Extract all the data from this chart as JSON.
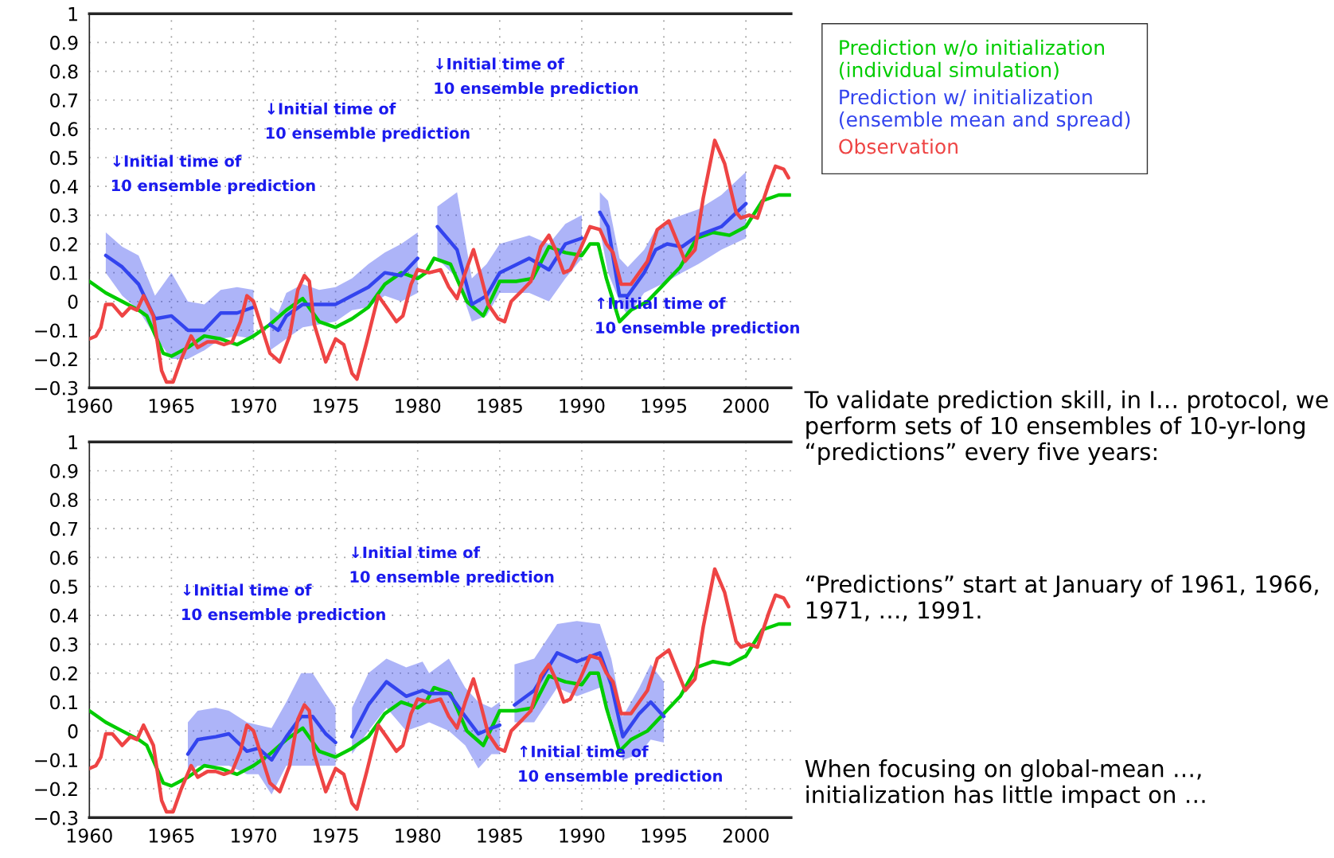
{
  "chart_data": [
    {
      "type": "line",
      "xlim": [
        1960,
        2002.75
      ],
      "ylim": [
        -0.3,
        1
      ],
      "xticks": [
        1960,
        1965,
        1970,
        1975,
        1980,
        1985,
        1990,
        1995,
        2000
      ],
      "yticks": [
        {
          "value": -0.3,
          "label": "−0.3"
        },
        {
          "value": -0.2,
          "label": "−0.2"
        },
        {
          "value": -0.1,
          "label": "−0.1"
        },
        0,
        0.1,
        0.2,
        0.3,
        0.4,
        0.5,
        0.6,
        0.7,
        0.8,
        0.9,
        1
      ],
      "grid": true,
      "legend": "right",
      "series": [
        {
          "name": "Prediction w/o initialization\n(individual simulation)",
          "color": "#00cc00",
          "x": [
            1960,
            1961,
            1962,
            1963,
            1963.5,
            1964.5,
            1965,
            1966,
            1967,
            1968,
            1969,
            1970,
            1971,
            1972,
            1973,
            1974,
            1975,
            1976,
            1977,
            1978,
            1979,
            1980,
            1980.5,
            1981,
            1982,
            1983,
            1983.6,
            1984,
            1985,
            1986,
            1987,
            1988,
            1989,
            1990,
            1990.5,
            1991,
            1991.5,
            1992.3,
            1993,
            1994,
            1995,
            1996,
            1997,
            1998,
            1999,
            2000,
            2001,
            2002,
            2002.7
          ],
          "values": [
            0.07,
            0.03,
            0.0,
            -0.03,
            -0.05,
            -0.18,
            -0.19,
            -0.16,
            -0.12,
            -0.13,
            -0.15,
            -0.12,
            -0.08,
            -0.03,
            0.01,
            -0.07,
            -0.09,
            -0.06,
            -0.02,
            0.06,
            0.1,
            0.08,
            0.1,
            0.15,
            0.13,
            0.0,
            -0.03,
            -0.05,
            0.07,
            0.07,
            0.08,
            0.19,
            0.17,
            0.16,
            0.2,
            0.2,
            0.08,
            -0.07,
            -0.03,
            0.0,
            0.06,
            0.12,
            0.22,
            0.24,
            0.23,
            0.26,
            0.35,
            0.37,
            0.37
          ]
        },
        {
          "name": "Prediction w/ initialization\n(ensemble mean and spread)",
          "color": "#3344ee",
          "x": [
            1961,
            1962,
            1963,
            1964,
            1965,
            1966,
            1967,
            1968,
            1969,
            1970
          ],
          "values": [
            0.16,
            0.12,
            0.06,
            -0.06,
            -0.05,
            -0.1,
            -0.1,
            -0.04,
            -0.04,
            -0.02
          ],
          "lower": [
            0.1,
            0.02,
            -0.03,
            -0.12,
            -0.2,
            -0.2,
            -0.17,
            -0.13,
            -0.12,
            -0.13
          ],
          "upper": [
            0.24,
            0.19,
            0.16,
            0.02,
            0.1,
            0.0,
            -0.01,
            0.04,
            0.05,
            0.04
          ]
        },
        {
          "color": "#3344ee",
          "x": [
            1971,
            1971.5,
            1972,
            1973,
            1974,
            1975,
            1976,
            1977,
            1978,
            1979,
            1980
          ],
          "values": [
            -0.08,
            -0.1,
            -0.05,
            -0.01,
            -0.01,
            -0.01,
            0.02,
            0.05,
            0.1,
            0.09,
            0.15
          ],
          "lower": [
            -0.17,
            -0.15,
            -0.13,
            -0.09,
            -0.08,
            -0.07,
            -0.03,
            -0.02,
            0.02,
            0.0,
            0.03
          ],
          "upper": [
            -0.02,
            -0.04,
            0.03,
            0.06,
            0.04,
            0.05,
            0.08,
            0.13,
            0.17,
            0.2,
            0.24
          ]
        },
        {
          "color": "#3344ee",
          "x": [
            1981.2,
            1982.4,
            1983.3,
            1984.2,
            1985,
            1986.8,
            1988,
            1989,
            1990
          ],
          "values": [
            0.26,
            0.18,
            -0.01,
            0.02,
            0.1,
            0.15,
            0.11,
            0.2,
            0.22
          ],
          "lower": [
            0.15,
            0.08,
            -0.07,
            -0.05,
            0.03,
            0.03,
            0.0,
            0.08,
            0.15
          ],
          "upper": [
            0.33,
            0.38,
            0.08,
            0.13,
            0.2,
            0.23,
            0.2,
            0.27,
            0.3
          ]
        },
        {
          "color": "#3344ee",
          "x": [
            1991.1,
            1991.6,
            1992.3,
            1992.8,
            1993.8,
            1994.5,
            1995.2,
            1996.1,
            1997.1,
            1998.5,
            2000
          ],
          "values": [
            0.31,
            0.26,
            0.02,
            0.02,
            0.1,
            0.18,
            0.2,
            0.19,
            0.23,
            0.26,
            0.34
          ],
          "lower": [
            0.25,
            0.1,
            0.0,
            -0.05,
            0.03,
            0.05,
            0.07,
            0.1,
            0.13,
            0.18,
            0.22
          ],
          "upper": [
            0.38,
            0.35,
            0.15,
            0.12,
            0.18,
            0.25,
            0.28,
            0.3,
            0.32,
            0.37,
            0.45
          ]
        },
        {
          "name": "Observation",
          "color": "#ee4444",
          "x": [
            1960,
            1960.4,
            1960.7,
            1961,
            1961.4,
            1962,
            1962.5,
            1962.9,
            1963.3,
            1963.9,
            1964.4,
            1964.7,
            1965.1,
            1965.6,
            1966.2,
            1966.6,
            1967.2,
            1967.7,
            1968.2,
            1968.7,
            1969.2,
            1969.6,
            1970,
            1970.5,
            1971,
            1971.6,
            1972.2,
            1972.7,
            1973.1,
            1973.4,
            1973.7,
            1974.4,
            1975,
            1975.5,
            1976,
            1976.3,
            1976.9,
            1977.6,
            1978.1,
            1978.7,
            1979.1,
            1979.6,
            1980,
            1980.7,
            1981.4,
            1981.9,
            1982.4,
            1982.9,
            1983.4,
            1983.8,
            1984.3,
            1984.9,
            1985.3,
            1985.7,
            1986.4,
            1986.9,
            1987.5,
            1988,
            1988.4,
            1988.9,
            1989.3,
            1989.9,
            1990.5,
            1991.1,
            1991.5,
            1991.9,
            1992.4,
            1993,
            1993.5,
            1994,
            1994.6,
            1995.3,
            1995.8,
            1996.3,
            1996.9,
            1997.4,
            1998.1,
            1998.7,
            1999.4,
            1999.7,
            2000.2,
            2000.7,
            2001.4,
            2001.8,
            2002.3,
            2002.6
          ],
          "values": [
            -0.13,
            -0.12,
            -0.09,
            -0.01,
            -0.01,
            -0.05,
            -0.02,
            -0.03,
            0.02,
            -0.05,
            -0.24,
            -0.28,
            -0.28,
            -0.2,
            -0.12,
            -0.16,
            -0.14,
            -0.14,
            -0.15,
            -0.14,
            -0.07,
            0.02,
            0.0,
            -0.09,
            -0.18,
            -0.21,
            -0.12,
            0.04,
            0.09,
            0.07,
            -0.08,
            -0.21,
            -0.13,
            -0.15,
            -0.25,
            -0.27,
            -0.14,
            0.02,
            -0.02,
            -0.07,
            -0.05,
            0.06,
            0.11,
            0.1,
            0.11,
            0.05,
            0.01,
            0.1,
            0.18,
            0.1,
            -0.01,
            -0.06,
            -0.07,
            0.0,
            0.04,
            0.07,
            0.19,
            0.23,
            0.18,
            0.1,
            0.11,
            0.18,
            0.26,
            0.25,
            0.2,
            0.17,
            0.06,
            0.06,
            0.1,
            0.14,
            0.25,
            0.28,
            0.21,
            0.14,
            0.18,
            0.36,
            0.56,
            0.48,
            0.31,
            0.29,
            0.3,
            0.29,
            0.41,
            0.47,
            0.46,
            0.43
          ]
        }
      ],
      "annotations": [
        "↓Initial time of\n10 ensemble prediction",
        "↓Initial time of\n10 ensemble prediction",
        "↓Initial time of\n10 ensemble prediction",
        "↑Initial time of\n10 ensemble prediction"
      ]
    },
    {
      "type": "line",
      "xlim": [
        1960,
        2002.75
      ],
      "ylim": [
        -0.3,
        1
      ],
      "xticks": [
        1960,
        1965,
        1970,
        1975,
        1980,
        1985,
        1990,
        1995,
        2000
      ],
      "yticks": [
        {
          "value": -0.3,
          "label": "−0.3"
        },
        {
          "value": -0.2,
          "label": "−0.2"
        },
        {
          "value": -0.1,
          "label": "−0.1"
        },
        0,
        0.1,
        0.2,
        0.3,
        0.4,
        0.5,
        0.6,
        0.7,
        0.8,
        0.9,
        1
      ],
      "grid": true,
      "series": [
        {
          "color": "#00cc00",
          "x": [
            1960,
            1961,
            1962,
            1963,
            1963.5,
            1964.5,
            1965,
            1966,
            1967,
            1968,
            1969,
            1970,
            1971,
            1972,
            1973,
            1974,
            1975,
            1976,
            1977,
            1978,
            1979,
            1980,
            1980.5,
            1981,
            1982,
            1983,
            1983.6,
            1984,
            1985,
            1986,
            1987,
            1988,
            1989,
            1990,
            1990.5,
            1991,
            1991.5,
            1992.3,
            1993,
            1994,
            1995,
            1996,
            1997,
            1998,
            1999,
            2000,
            2001,
            2002,
            2002.7
          ],
          "values": [
            0.07,
            0.03,
            0.0,
            -0.03,
            -0.05,
            -0.18,
            -0.19,
            -0.16,
            -0.12,
            -0.13,
            -0.15,
            -0.12,
            -0.08,
            -0.03,
            0.01,
            -0.07,
            -0.09,
            -0.06,
            -0.02,
            0.06,
            0.1,
            0.08,
            0.1,
            0.15,
            0.13,
            0.0,
            -0.03,
            -0.05,
            0.07,
            0.07,
            0.08,
            0.19,
            0.17,
            0.16,
            0.2,
            0.2,
            0.08,
            -0.07,
            -0.03,
            0.0,
            0.06,
            0.12,
            0.22,
            0.24,
            0.23,
            0.26,
            0.35,
            0.37,
            0.37
          ]
        },
        {
          "color": "#3344ee",
          "x": [
            1966,
            1966.6,
            1967.7,
            1968.5,
            1969.6,
            1970.3,
            1971.1,
            1972,
            1972.9,
            1973.6,
            1974.4,
            1975
          ],
          "values": [
            -0.08,
            -0.03,
            -0.02,
            -0.01,
            -0.07,
            -0.06,
            -0.1,
            -0.02,
            0.05,
            0.05,
            -0.01,
            -0.04
          ],
          "lower": [
            -0.15,
            -0.12,
            -0.12,
            -0.12,
            -0.15,
            -0.15,
            -0.22,
            -0.12,
            -0.12,
            -0.12,
            -0.12,
            -0.12
          ],
          "upper": [
            0.03,
            0.07,
            0.08,
            0.07,
            0.03,
            0.02,
            0.01,
            0.1,
            0.2,
            0.2,
            0.13,
            0.08
          ]
        },
        {
          "color": "#3344ee",
          "x": [
            1976,
            1977,
            1978.1,
            1979.3,
            1980.3,
            1980.7,
            1981.9,
            1982.9,
            1983.7,
            1984.5,
            1985
          ],
          "values": [
            -0.02,
            0.09,
            0.17,
            0.12,
            0.14,
            0.13,
            0.13,
            0.05,
            -0.01,
            0.01,
            0.02
          ],
          "lower": [
            -0.08,
            0.0,
            0.08,
            0.0,
            0.02,
            0.03,
            0.0,
            -0.05,
            -0.13,
            -0.08,
            -0.08
          ],
          "upper": [
            0.08,
            0.2,
            0.25,
            0.22,
            0.24,
            0.2,
            0.25,
            0.15,
            0.1,
            0.08,
            0.1
          ]
        },
        {
          "color": "#3344ee",
          "x": [
            1985.9,
            1987.1,
            1988.5,
            1989.7,
            1991.1,
            1991.8,
            1992.5,
            1993.5,
            1994.2,
            1995
          ],
          "values": [
            0.09,
            0.14,
            0.27,
            0.24,
            0.27,
            0.16,
            -0.02,
            0.06,
            0.1,
            0.05
          ],
          "lower": [
            0.03,
            0.03,
            0.15,
            0.12,
            0.15,
            0.05,
            -0.1,
            -0.08,
            -0.03,
            -0.04
          ],
          "upper": [
            0.23,
            0.25,
            0.37,
            0.38,
            0.37,
            0.25,
            0.05,
            0.15,
            0.23,
            0.17
          ]
        },
        {
          "color": "#ee4444",
          "x": [
            1960,
            1960.4,
            1960.7,
            1961,
            1961.4,
            1962,
            1962.5,
            1962.9,
            1963.3,
            1963.9,
            1964.4,
            1964.7,
            1965.1,
            1965.6,
            1966.2,
            1966.6,
            1967.2,
            1967.7,
            1968.2,
            1968.7,
            1969.2,
            1969.6,
            1970,
            1970.5,
            1971,
            1971.6,
            1972.2,
            1972.7,
            1973.1,
            1973.4,
            1973.7,
            1974.4,
            1975,
            1975.5,
            1976,
            1976.3,
            1976.9,
            1977.6,
            1978.1,
            1978.7,
            1979.1,
            1979.6,
            1980,
            1980.7,
            1981.4,
            1981.9,
            1982.4,
            1982.9,
            1983.4,
            1983.8,
            1984.3,
            1984.9,
            1985.3,
            1985.7,
            1986.4,
            1986.9,
            1987.5,
            1988,
            1988.4,
            1988.9,
            1989.3,
            1989.9,
            1990.5,
            1991.1,
            1991.5,
            1991.9,
            1992.4,
            1993,
            1993.5,
            1994,
            1994.6,
            1995.3,
            1995.8,
            1996.3,
            1996.9,
            1997.4,
            1998.1,
            1998.7,
            1999.4,
            1999.7,
            2000.2,
            2000.7,
            2001.4,
            2001.8,
            2002.3,
            2002.6
          ],
          "values": [
            -0.13,
            -0.12,
            -0.09,
            -0.01,
            -0.01,
            -0.05,
            -0.02,
            -0.03,
            0.02,
            -0.05,
            -0.24,
            -0.28,
            -0.28,
            -0.2,
            -0.12,
            -0.16,
            -0.14,
            -0.14,
            -0.15,
            -0.14,
            -0.07,
            0.02,
            0.0,
            -0.09,
            -0.18,
            -0.21,
            -0.12,
            0.04,
            0.09,
            0.07,
            -0.08,
            -0.21,
            -0.13,
            -0.15,
            -0.25,
            -0.27,
            -0.14,
            0.02,
            -0.02,
            -0.07,
            -0.05,
            0.06,
            0.11,
            0.1,
            0.11,
            0.05,
            0.01,
            0.1,
            0.18,
            0.1,
            -0.01,
            -0.06,
            -0.07,
            0.0,
            0.04,
            0.07,
            0.19,
            0.23,
            0.18,
            0.1,
            0.11,
            0.18,
            0.26,
            0.25,
            0.2,
            0.17,
            0.06,
            0.06,
            0.1,
            0.14,
            0.25,
            0.28,
            0.21,
            0.14,
            0.18,
            0.36,
            0.56,
            0.48,
            0.31,
            0.29,
            0.3,
            0.29,
            0.41,
            0.47,
            0.46,
            0.43
          ]
        }
      ],
      "annotations": [
        "↓Initial time of\n10 ensemble prediction",
        "↓Initial time of\n10 ensemble prediction",
        "↑Initial time of\n10 ensemble prediction"
      ]
    },
    {
      "type": "other",
      "annotations": [
        "To validate prediction skill, in I… protocol, we perform sets of 10 ensembles of 10-yr-long “predictions” every five years:",
        "“Predictions” start at January of 1961, 1966, 1971, …, 1991.",
        "When focusing on global-mean …, initialization has little impact on …"
      ]
    }
  ]
}
